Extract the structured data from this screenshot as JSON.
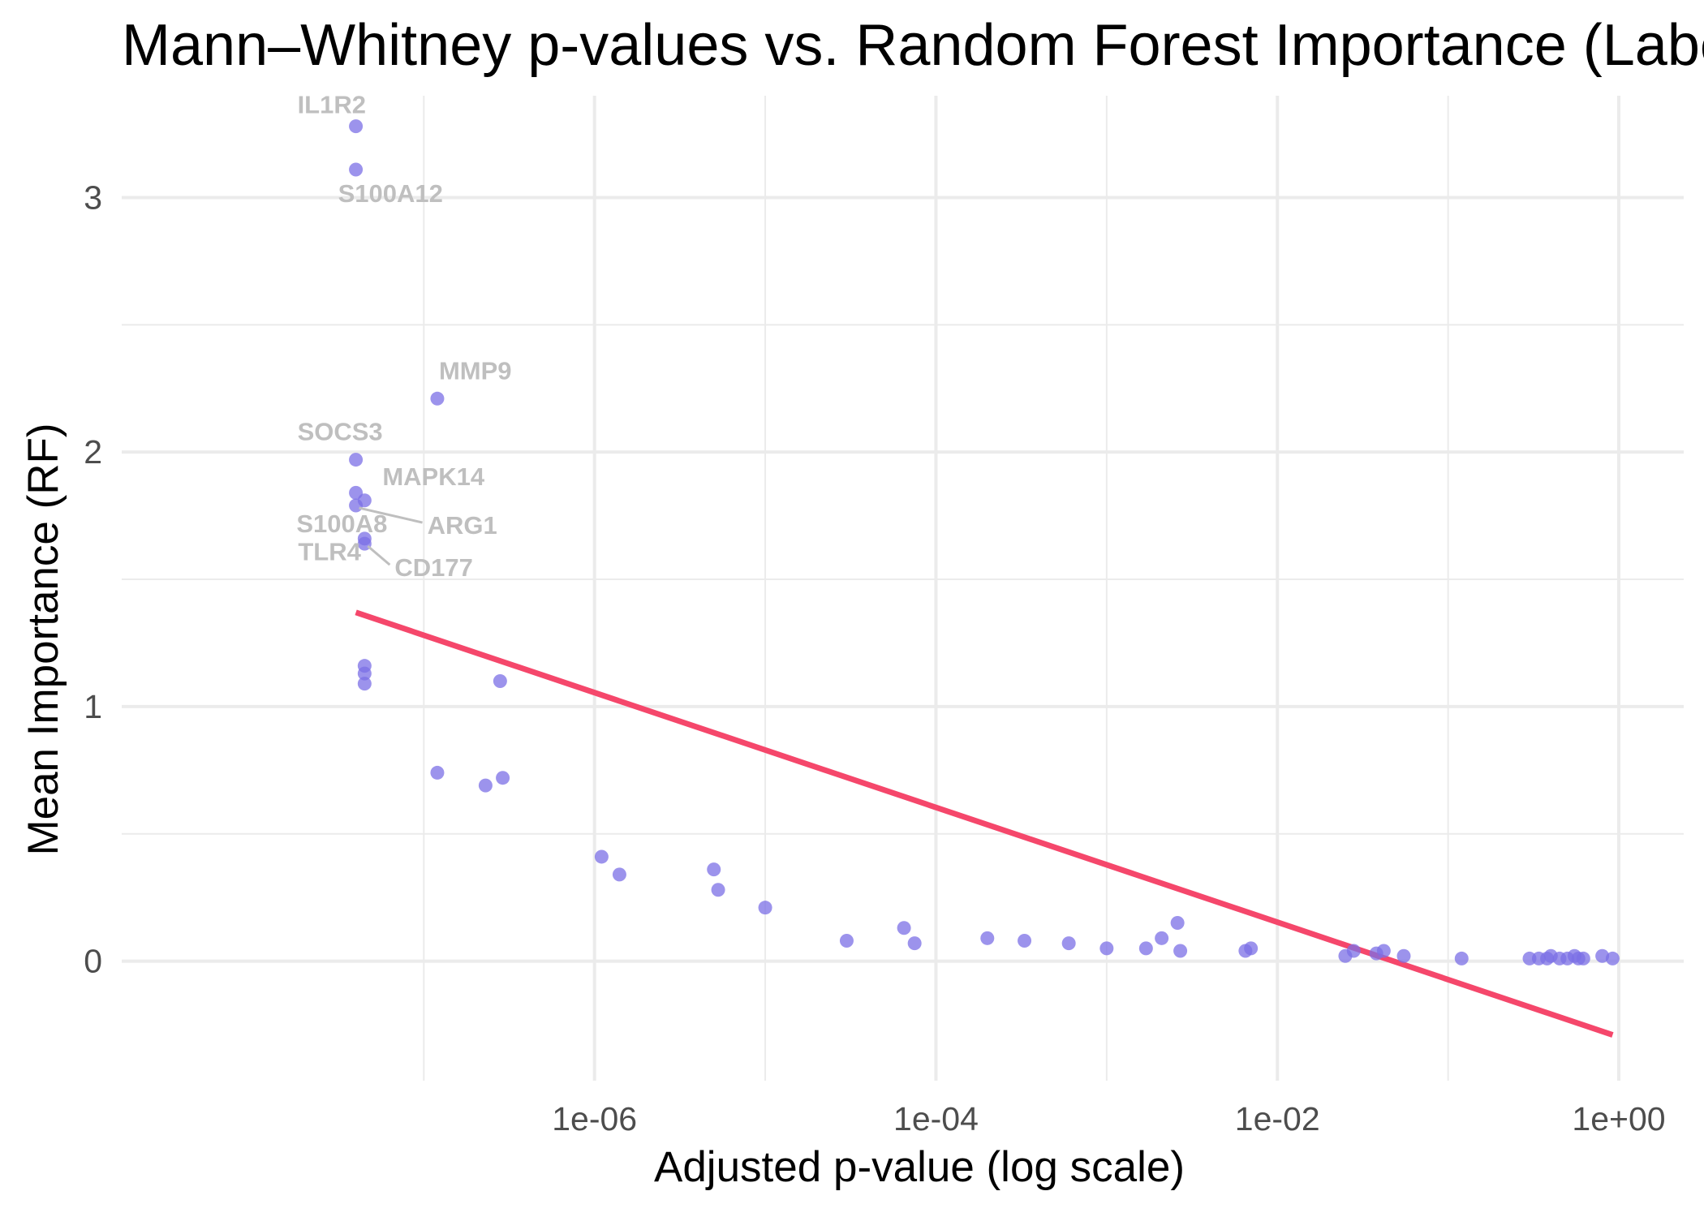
{
  "chart_data": {
    "type": "scatter",
    "title": "Mann–Whitney p-values vs. Random Forest Importance (Labeled)",
    "xlabel": "Adjusted p-value (log scale)",
    "ylabel": "Mean Importance (RF)",
    "x_scale": "log10",
    "xlim": [
      1.7e-09,
      2.4
    ],
    "ylim": [
      -0.47,
      3.4
    ],
    "x_ticks": [
      {
        "value": 1e-06,
        "label": "1e-06"
      },
      {
        "value": 0.0001,
        "label": "1e-04"
      },
      {
        "value": 0.01,
        "label": "1e-02"
      },
      {
        "value": 1,
        "label": "1e+00"
      }
    ],
    "y_ticks": [
      {
        "value": 0,
        "label": "0"
      },
      {
        "value": 1,
        "label": "1"
      },
      {
        "value": 2,
        "label": "2"
      },
      {
        "value": 3,
        "label": "3"
      }
    ],
    "grid": true,
    "point_color": "#7B6FE6",
    "line_color": "#F5476B",
    "label_color": "#BFBFBF",
    "points": [
      {
        "x": 4e-08,
        "y": 3.28,
        "label": "IL1R2"
      },
      {
        "x": 4e-08,
        "y": 3.11,
        "label": "S100A12"
      },
      {
        "x": 1.2e-07,
        "y": 2.21,
        "label": "MMP9"
      },
      {
        "x": 4e-08,
        "y": 1.97,
        "label": "SOCS3"
      },
      {
        "x": 4e-08,
        "y": 1.84
      },
      {
        "x": 4.5e-08,
        "y": 1.81,
        "label": "MAPK14"
      },
      {
        "x": 4e-08,
        "y": 1.79,
        "label": "ARG1"
      },
      {
        "x": 4.5e-08,
        "y": 1.66,
        "label": "S100A8"
      },
      {
        "x": 4.5e-08,
        "y": 1.64,
        "label": "CD177"
      },
      {
        "x": 4.5e-08,
        "y": 1.16,
        "label": "TLR4"
      },
      {
        "x": 4.5e-08,
        "y": 1.13
      },
      {
        "x": 4.5e-08,
        "y": 1.09
      },
      {
        "x": 2.8e-07,
        "y": 1.1
      },
      {
        "x": 1.2e-07,
        "y": 0.74
      },
      {
        "x": 2.3e-07,
        "y": 0.69
      },
      {
        "x": 2.9e-07,
        "y": 0.72
      },
      {
        "x": 1.1e-06,
        "y": 0.41
      },
      {
        "x": 1.4e-06,
        "y": 0.34
      },
      {
        "x": 5e-06,
        "y": 0.36
      },
      {
        "x": 5.3e-06,
        "y": 0.28
      },
      {
        "x": 1e-05,
        "y": 0.21
      },
      {
        "x": 3e-05,
        "y": 0.08
      },
      {
        "x": 6.5e-05,
        "y": 0.13
      },
      {
        "x": 7.5e-05,
        "y": 0.07
      },
      {
        "x": 0.0002,
        "y": 0.09
      },
      {
        "x": 0.00033,
        "y": 0.08
      },
      {
        "x": 0.0006,
        "y": 0.07
      },
      {
        "x": 0.001,
        "y": 0.05
      },
      {
        "x": 0.0017,
        "y": 0.05
      },
      {
        "x": 0.0021,
        "y": 0.09
      },
      {
        "x": 0.0026,
        "y": 0.15
      },
      {
        "x": 0.0027,
        "y": 0.04
      },
      {
        "x": 0.0065,
        "y": 0.04
      },
      {
        "x": 0.007,
        "y": 0.05
      },
      {
        "x": 0.025,
        "y": 0.02
      },
      {
        "x": 0.028,
        "y": 0.04
      },
      {
        "x": 0.038,
        "y": 0.03
      },
      {
        "x": 0.042,
        "y": 0.04
      },
      {
        "x": 0.055,
        "y": 0.02
      },
      {
        "x": 0.12,
        "y": 0.01
      },
      {
        "x": 0.3,
        "y": 0.01
      },
      {
        "x": 0.34,
        "y": 0.01
      },
      {
        "x": 0.38,
        "y": 0.01
      },
      {
        "x": 0.4,
        "y": 0.02
      },
      {
        "x": 0.45,
        "y": 0.01
      },
      {
        "x": 0.5,
        "y": 0.01
      },
      {
        "x": 0.55,
        "y": 0.02
      },
      {
        "x": 0.58,
        "y": 0.01
      },
      {
        "x": 0.62,
        "y": 0.01
      },
      {
        "x": 0.8,
        "y": 0.02
      },
      {
        "x": 0.92,
        "y": 0.01
      }
    ],
    "fit_line": {
      "x": [
        4e-08,
        0.92
      ],
      "y": [
        1.37,
        -0.29
      ]
    }
  }
}
